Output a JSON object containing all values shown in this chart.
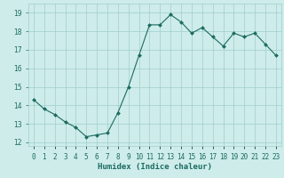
{
  "x": [
    0,
    1,
    2,
    3,
    4,
    5,
    6,
    7,
    8,
    9,
    10,
    11,
    12,
    13,
    14,
    15,
    16,
    17,
    18,
    19,
    20,
    21,
    22,
    23
  ],
  "y": [
    14.3,
    13.8,
    13.5,
    13.1,
    12.8,
    12.3,
    12.4,
    12.5,
    13.6,
    15.0,
    16.7,
    18.35,
    18.35,
    18.9,
    18.5,
    17.9,
    18.2,
    17.7,
    17.2,
    17.9,
    17.7,
    17.9,
    17.3,
    16.7
  ],
  "bg_color": "#ceecea",
  "grid_color": "#9ecfcc",
  "line_color": "#1a6b60",
  "marker_color": "#1a6b60",
  "xlabel": "Humidex (Indice chaleur)",
  "xlim": [
    -0.5,
    23.5
  ],
  "ylim": [
    11.8,
    19.5
  ],
  "yticks": [
    12,
    13,
    14,
    15,
    16,
    17,
    18,
    19
  ],
  "xticks": [
    0,
    1,
    2,
    3,
    4,
    5,
    6,
    7,
    8,
    9,
    10,
    11,
    12,
    13,
    14,
    15,
    16,
    17,
    18,
    19,
    20,
    21,
    22,
    23
  ],
  "xtick_labels": [
    "0",
    "1",
    "2",
    "3",
    "4",
    "5",
    "6",
    "7",
    "8",
    "9",
    "10",
    "11",
    "12",
    "13",
    "14",
    "15",
    "16",
    "17",
    "18",
    "19",
    "20",
    "21",
    "22",
    "23"
  ],
  "tick_fontsize": 5.5,
  "label_fontsize": 6.5
}
